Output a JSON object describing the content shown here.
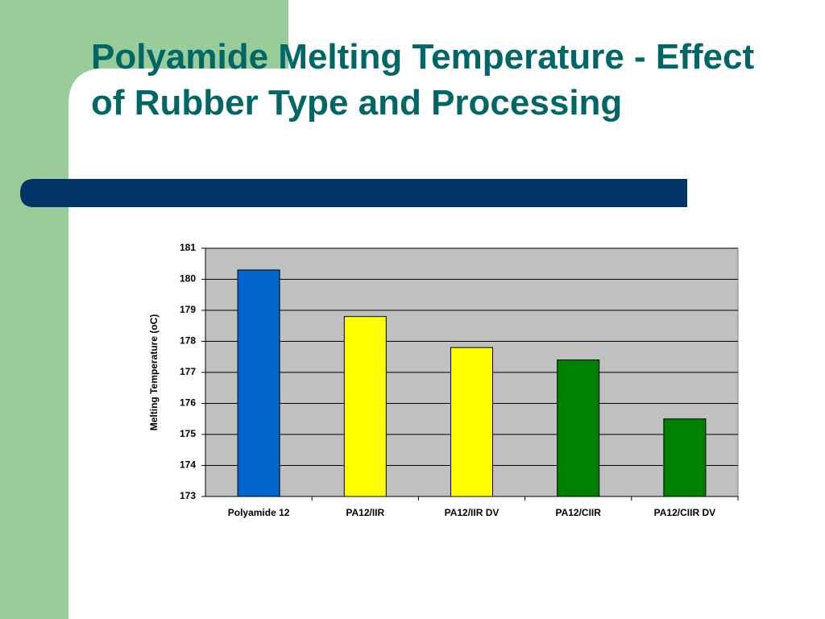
{
  "chart_data": {
    "type": "bar",
    "title": "Polyamide Melting Temperature - Effect of Rubber Type and Processing",
    "y_label": "Melting Temperature (oC)",
    "categories": [
      "Polyamide 12",
      "PA12/IIR",
      "PA12/IIR DV",
      "PA12/CIIR",
      "PA12/CIIR DV"
    ],
    "values": [
      180.3,
      178.8,
      177.8,
      177.4,
      175.5
    ],
    "colors": [
      "#0066cc",
      "#ffff00",
      "#ffff00",
      "#008000",
      "#008000"
    ],
    "ylim": [
      173,
      181
    ],
    "yticks": [
      173,
      174,
      175,
      176,
      177,
      178,
      179,
      180,
      181
    ],
    "grid": true
  }
}
